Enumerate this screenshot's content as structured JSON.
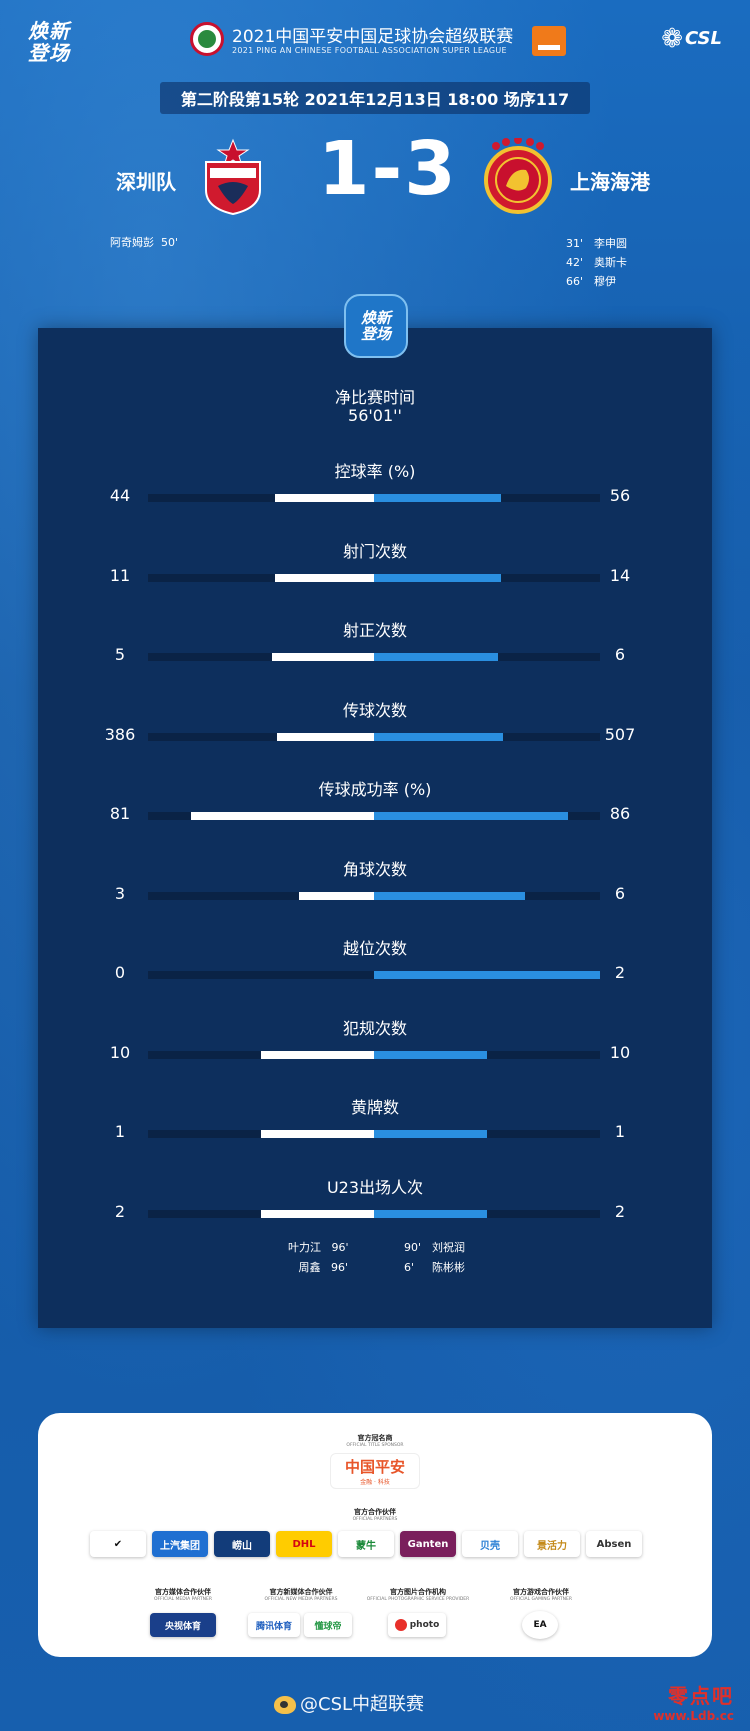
{
  "header": {
    "logo_left": "焕新\n登场",
    "league_title": "2021中国平安中国足球协会超级联赛",
    "league_subtitle": "2021 PING AN CHINESE FOOTBALL ASSOCIATION SUPER LEAGUE",
    "csl_logo": "CSL",
    "match_info": "第二阶段第15轮  2021年12月13日  18:00  场序117"
  },
  "match": {
    "home_team": "深圳队",
    "away_team": "上海海港",
    "score": "1-3",
    "home_scorers": [
      {
        "player": "阿奇姆彭",
        "minute": "50'"
      }
    ],
    "away_scorers": [
      {
        "minute": "31'",
        "player": "李申圆"
      },
      {
        "minute": "42'",
        "player": "奥斯卡"
      },
      {
        "minute": "66'",
        "player": "穆伊"
      }
    ]
  },
  "panel_badge": "焕新\n登场",
  "net_time": {
    "label": "净比赛时间",
    "value": "56'01''"
  },
  "stats": [
    {
      "label": "控球率 (%)",
      "home": "44",
      "away": "56",
      "home_frac": 0.44,
      "away_frac": 0.56
    },
    {
      "label": "射门次数",
      "home": "11",
      "away": "14",
      "home_frac": 0.44,
      "away_frac": 0.56
    },
    {
      "label": "射正次数",
      "home": "5",
      "away": "6",
      "home_frac": 0.45,
      "away_frac": 0.55
    },
    {
      "label": "传球次数",
      "home": "386",
      "away": "507",
      "home_frac": 0.43,
      "away_frac": 0.57
    },
    {
      "label": "传球成功率 (%)",
      "home": "81",
      "away": "86",
      "home_frac": 0.81,
      "away_frac": 0.86
    },
    {
      "label": "角球次数",
      "home": "3",
      "away": "6",
      "home_frac": 0.33,
      "away_frac": 0.67
    },
    {
      "label": "越位次数",
      "home": "0",
      "away": "2",
      "home_frac": 0.0,
      "away_frac": 1.0
    },
    {
      "label": "犯规次数",
      "home": "10",
      "away": "10",
      "home_frac": 0.5,
      "away_frac": 0.5
    },
    {
      "label": "黄牌数",
      "home": "1",
      "away": "1",
      "home_frac": 0.5,
      "away_frac": 0.5
    },
    {
      "label": "U23出场人次",
      "home": "2",
      "away": "2",
      "home_frac": 0.5,
      "away_frac": 0.5
    }
  ],
  "u23_subs": {
    "home": [
      {
        "player": "叶力江",
        "minute": "96'"
      },
      {
        "player": "周鑫",
        "minute": "96'"
      }
    ],
    "away": [
      {
        "minute": "90'",
        "player": "刘祝润"
      },
      {
        "minute": "6'",
        "player": "陈彬彬"
      }
    ]
  },
  "sponsors": {
    "title_caption": "官方冠名商",
    "title_caption_en": "OFFICIAL TITLE SPONSOR",
    "title_name": "中国平安",
    "title_sub": "金融 · 科技",
    "partners_caption": "官方合作伙伴",
    "partners_caption_en": "OFFICIAL PARTNERS",
    "partners": [
      "✔",
      "上汽集团",
      "崂山",
      "DHL",
      "蒙牛",
      "Ganten",
      "贝壳",
      "景活力",
      "Absen"
    ],
    "media_caption": "官方媒体合作伙伴",
    "media_caption_en": "OFFICIAL MEDIA PARTNER",
    "media": "央视体育",
    "newmedia_caption": "官方新媒体合作伙伴",
    "newmedia_caption_en": "OFFICIAL NEW MEDIA PARTNERS",
    "newmedia": [
      "腾讯体育",
      "懂球帝"
    ],
    "photo_caption": "官方图片合作机构",
    "photo_caption_en": "OFFICIAL PHOTOGRAPHIC SERVICE PROVIDER",
    "photo": "photo",
    "gaming_caption": "官方游戏合作伙伴",
    "gaming_caption_en": "OFFICIAL GAMING PARTNER",
    "gaming": "EA"
  },
  "footer": {
    "weibo": "@CSL中超联赛",
    "watermark_cn": "零点吧",
    "watermark_en": "www.Ldb.cc"
  },
  "colors": {
    "home_bar": "#ffffff",
    "away_bar": "#2a8fe0",
    "panel": "#0d2f5d",
    "background": "#1561b0"
  }
}
